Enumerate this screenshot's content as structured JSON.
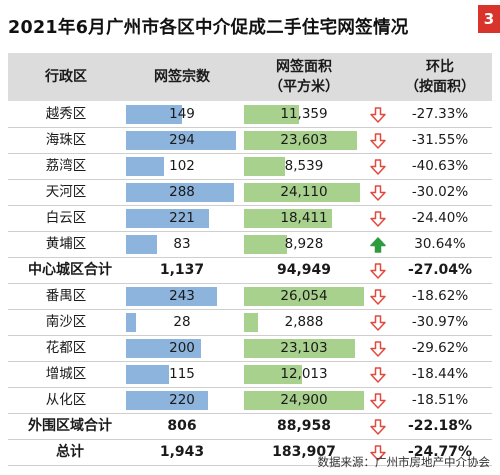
{
  "title": "2021年6月广州市各区中介促成二手住宅网签情况",
  "badge": "3",
  "source": "数据来源：广州市房地产中介协会",
  "colors": {
    "count_bar": "#8db4dc",
    "area_bar": "#a9d18e",
    "down_arrow": "#e04a3f",
    "up_arrow": "#2e9b3e",
    "header_bg": "#dcdcdc",
    "badge": "#d9342b"
  },
  "headers": {
    "district": "行政区",
    "count": "网签宗数",
    "area_line1": "网签面积",
    "area_line2": "（平方米）",
    "change_line1": "环比",
    "change_line2": "（按面积）"
  },
  "chart_data": {
    "type": "table",
    "title": "2021年6月广州市各区中介促成二手住宅网签情况",
    "columns": [
      "行政区",
      "网签宗数",
      "网签面积（平方米）",
      "环比（按面积）"
    ],
    "bar_max": {
      "count": 300,
      "area": 25000
    },
    "rows": [
      {
        "name": "越秀区",
        "count": 149,
        "count_label": "149",
        "area": 11359,
        "area_label": "11,359",
        "change": "-27.33%",
        "dir": "down",
        "summary": false
      },
      {
        "name": "海珠区",
        "count": 294,
        "count_label": "294",
        "area": 23603,
        "area_label": "23,603",
        "change": "-31.55%",
        "dir": "down",
        "summary": false
      },
      {
        "name": "荔湾区",
        "count": 102,
        "count_label": "102",
        "area": 8539,
        "area_label": "8,539",
        "change": "-40.63%",
        "dir": "down",
        "summary": false
      },
      {
        "name": "天河区",
        "count": 288,
        "count_label": "288",
        "area": 24110,
        "area_label": "24,110",
        "change": "-30.02%",
        "dir": "down",
        "summary": false
      },
      {
        "name": "白云区",
        "count": 221,
        "count_label": "221",
        "area": 18411,
        "area_label": "18,411",
        "change": "-24.40%",
        "dir": "down",
        "summary": false
      },
      {
        "name": "黄埔区",
        "count": 83,
        "count_label": "83",
        "area": 8928,
        "area_label": "8,928",
        "change": "30.64%",
        "dir": "up",
        "summary": false
      },
      {
        "name": "中心城区合计",
        "count": 1137,
        "count_label": "1,137",
        "area": 94949,
        "area_label": "94,949",
        "change": "-27.04%",
        "dir": "down",
        "summary": true
      },
      {
        "name": "番禺区",
        "count": 243,
        "count_label": "243",
        "area": 26054,
        "area_label": "26,054",
        "change": "-18.62%",
        "dir": "down",
        "summary": false
      },
      {
        "name": "南沙区",
        "count": 28,
        "count_label": "28",
        "area": 2888,
        "area_label": "2,888",
        "change": "-30.97%",
        "dir": "down",
        "summary": false
      },
      {
        "name": "花都区",
        "count": 200,
        "count_label": "200",
        "area": 23103,
        "area_label": "23,103",
        "change": "-29.62%",
        "dir": "down",
        "summary": false
      },
      {
        "name": "增城区",
        "count": 115,
        "count_label": "115",
        "area": 12013,
        "area_label": "12,013",
        "change": "-18.44%",
        "dir": "down",
        "summary": false
      },
      {
        "name": "从化区",
        "count": 220,
        "count_label": "220",
        "area": 24900,
        "area_label": "24,900",
        "change": "-18.51%",
        "dir": "down",
        "summary": false
      },
      {
        "name": "外围区域合计",
        "count": 806,
        "count_label": "806",
        "area": 88958,
        "area_label": "88,958",
        "change": "-22.18%",
        "dir": "down",
        "summary": true
      },
      {
        "name": "总计",
        "count": 1943,
        "count_label": "1,943",
        "area": 183907,
        "area_label": "183,907",
        "change": "-24.77%",
        "dir": "down",
        "summary": true
      }
    ]
  }
}
